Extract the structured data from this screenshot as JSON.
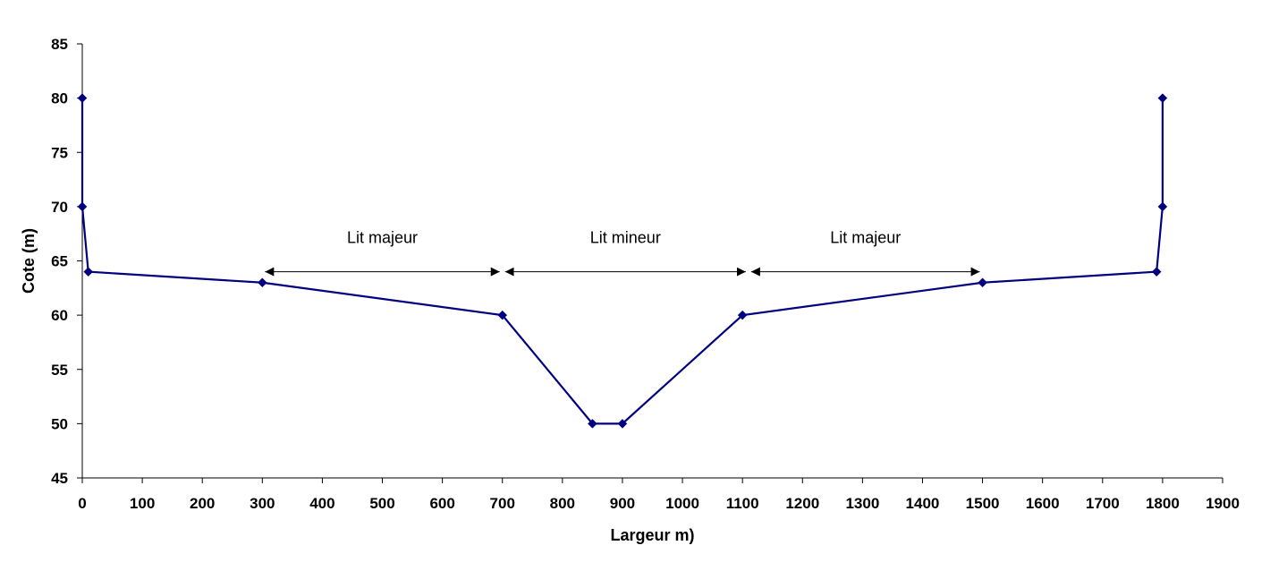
{
  "chart_data": {
    "type": "line",
    "title": "",
    "xlabel": "Largeur m)",
    "ylabel": "Cote (m)",
    "xlim": [
      0,
      1900
    ],
    "ylim": [
      45,
      85
    ],
    "grid": false,
    "legend": "none",
    "x_ticks": [
      "0",
      "100",
      "200",
      "300",
      "400",
      "500",
      "600",
      "700",
      "800",
      "900",
      "1000",
      "1100",
      "1200",
      "1300",
      "1400",
      "1500",
      "1600",
      "1700",
      "1800",
      "1900"
    ],
    "y_ticks": [
      "45",
      "50",
      "55",
      "60",
      "65",
      "70",
      "75",
      "80",
      "85"
    ],
    "series": [
      {
        "x": [
          0,
          0,
          10,
          300,
          700,
          850,
          900,
          1100,
          1500,
          1790,
          1800,
          1800
        ],
        "y": [
          80,
          70,
          64,
          63,
          60,
          50,
          50,
          60,
          63,
          64,
          70,
          80
        ]
      }
    ],
    "annotations": [
      {
        "text": "Lit majeur",
        "x_start": 300,
        "x_end": 700,
        "y": 64
      },
      {
        "text": "Lit mineur",
        "x_start": 700,
        "x_end": 1110,
        "y": 64
      },
      {
        "text": "Lit majeur",
        "x_start": 1110,
        "x_end": 1500,
        "y": 64
      }
    ],
    "colors": {
      "series": "#000080",
      "axis": "#000000",
      "annotation": "#000000"
    }
  }
}
